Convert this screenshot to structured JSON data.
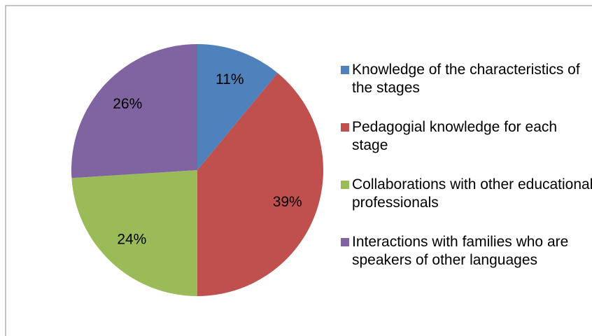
{
  "chart_data": {
    "type": "pie",
    "categories": [
      "Knowledge of the characteristics of the stages",
      "Pedagogial knowledge for each stage",
      "Collaborations with other educational professionals",
      "Interactions with families who are speakers of other languages"
    ],
    "values": [
      11,
      39,
      24,
      26
    ],
    "value_labels": [
      "11%",
      "39%",
      "24%",
      "26%"
    ],
    "colors": [
      "#4f81bd",
      "#c0504d",
      "#9bbb59",
      "#8064a2"
    ],
    "legend": "right"
  }
}
